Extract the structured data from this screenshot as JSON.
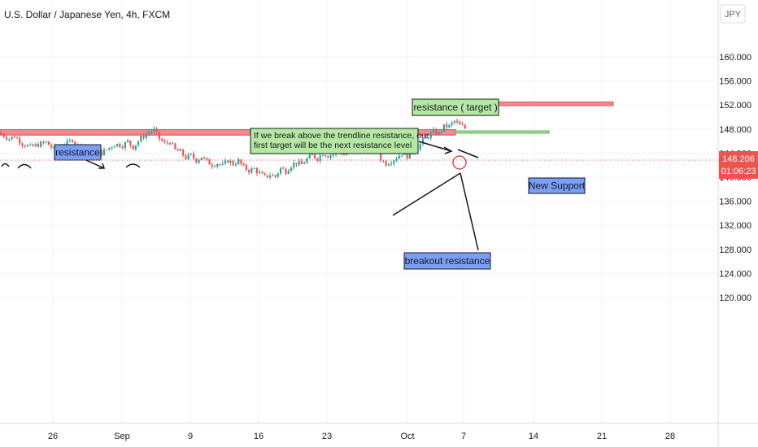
{
  "chart_data": {
    "type": "candlestick",
    "title": "U.S. Dollar / Japanese Yen, 4h, FXCM",
    "currency": "JPY",
    "y_ticks": [
      "160.000",
      "156.000",
      "152.000",
      "148.000",
      "144.000",
      "140.000",
      "136.000",
      "132.000",
      "128.000",
      "124.000",
      "120.000"
    ],
    "x_ticks": [
      "26",
      "Sep",
      "9",
      "16",
      "23",
      "Oct",
      "7",
      "14",
      "21",
      "28"
    ],
    "ylim": [
      117.5,
      164.5
    ],
    "last_price": "148.206",
    "countdown": "01:06:23",
    "price_path": [
      [
        147.2,
        0
      ],
      [
        146.4,
        3
      ],
      [
        146.8,
        5
      ],
      [
        145.6,
        8
      ],
      [
        145.0,
        11
      ],
      [
        145.4,
        14
      ],
      [
        145.8,
        17
      ],
      [
        144.6,
        20
      ],
      [
        145.2,
        22
      ],
      [
        145.6,
        25
      ],
      [
        146.3,
        27
      ],
      [
        145.2,
        29
      ],
      [
        144.4,
        31
      ],
      [
        144.9,
        33
      ],
      [
        144.5,
        36
      ],
      [
        144.0,
        38
      ],
      [
        144.6,
        40
      ],
      [
        145.5,
        43
      ],
      [
        145.3,
        46
      ],
      [
        145.9,
        48
      ],
      [
        145.0,
        50
      ],
      [
        146.5,
        53
      ],
      [
        147.5,
        56
      ],
      [
        147.8,
        58
      ],
      [
        146.4,
        60
      ],
      [
        145.6,
        62
      ],
      [
        145.9,
        64
      ],
      [
        144.5,
        66
      ],
      [
        144.2,
        68
      ],
      [
        143.2,
        70
      ],
      [
        143.6,
        72
      ],
      [
        142.8,
        74
      ],
      [
        143.4,
        76
      ],
      [
        142.6,
        78
      ],
      [
        142.1,
        80
      ],
      [
        142.3,
        82
      ],
      [
        141.9,
        84
      ],
      [
        142.8,
        86
      ],
      [
        142.2,
        88
      ],
      [
        142.7,
        90
      ],
      [
        141.6,
        92
      ],
      [
        141.1,
        94
      ],
      [
        141.4,
        96
      ],
      [
        140.6,
        98
      ],
      [
        140.0,
        100
      ],
      [
        140.4,
        102
      ],
      [
        140.1,
        104
      ],
      [
        141.5,
        106
      ],
      [
        141.0,
        108
      ],
      [
        142.0,
        110
      ],
      [
        142.4,
        112
      ],
      [
        142.1,
        114
      ],
      [
        143.0,
        116
      ],
      [
        143.6,
        118
      ],
      [
        143.1,
        120
      ],
      [
        144.0,
        122
      ],
      [
        143.6,
        124
      ],
      [
        143.8,
        126
      ],
      [
        144.4,
        128
      ],
      [
        143.7,
        130
      ],
      [
        144.6,
        132
      ],
      [
        145.4,
        134
      ],
      [
        144.9,
        136
      ],
      [
        145.8,
        138
      ],
      [
        145.6,
        140
      ],
      [
        146.3,
        142
      ],
      [
        143.0,
        144
      ],
      [
        142.3,
        146
      ],
      [
        142.7,
        148
      ],
      [
        143.3,
        150
      ],
      [
        144.0,
        152
      ],
      [
        143.5,
        154
      ],
      [
        144.2,
        156
      ],
      [
        145.0,
        158
      ],
      [
        146.0,
        160
      ],
      [
        146.8,
        162
      ],
      [
        147.5,
        164
      ],
      [
        147.3,
        166
      ],
      [
        148.4,
        168
      ],
      [
        148.5,
        170
      ],
      [
        149.3,
        172
      ],
      [
        148.6,
        174
      ],
      [
        148.2,
        176
      ]
    ],
    "price_scale": {
      "n_bars": 176
    },
    "annotations": [
      {
        "kind": "label",
        "name": "resistance-label",
        "text": "resistance",
        "price": 149.5,
        "bar": 8,
        "fill": "#7b9ff7"
      },
      {
        "kind": "label",
        "name": "target-label",
        "text": "resistance ( target )",
        "price": 154.5,
        "bar": 60,
        "fill": "#b5e8a0"
      },
      {
        "kind": "label",
        "name": "note-label",
        "text_lines": [
          "If we break above the trendline resistance, our",
          "first target will be the next resistance level"
        ],
        "price": 150.6,
        "bar": 44,
        "fill": "#b5e8a0"
      },
      {
        "kind": "label",
        "name": "new-support-label",
        "text": "New Support",
        "price": 145.0,
        "bar": 109,
        "fill": "#7b9ff7"
      },
      {
        "kind": "label",
        "name": "breakout-label",
        "text": "breakout resistance",
        "price": 137.5,
        "bar": 84,
        "fill": "#7b9ff7"
      }
    ],
    "resistance_zone": {
      "top": 147.9,
      "bottom": 147.0,
      "fill": "#ef8c91"
    },
    "target_zone": {
      "top": 152.5,
      "bottom": 151.9,
      "fill": "#ef8c91"
    },
    "support_zone": {
      "top": 147.7,
      "bottom": 147.3,
      "fill": "#a5d89b"
    },
    "colors": {
      "up": "#26a69a",
      "down": "#ef5350",
      "last_price_line": "#ef5350",
      "grid": "#f0f3fa"
    }
  }
}
